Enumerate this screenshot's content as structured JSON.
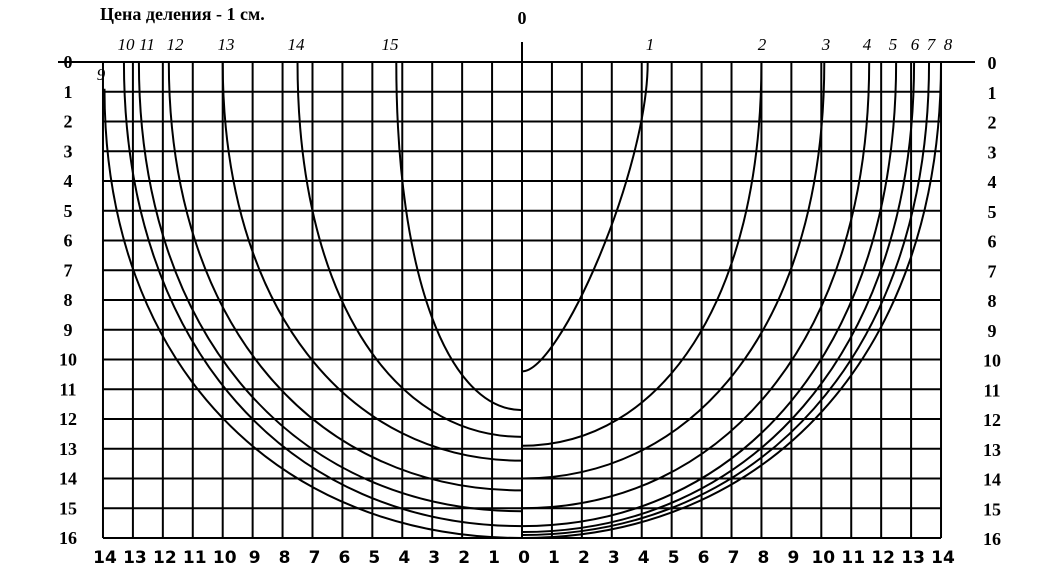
{
  "title": "Цена деления - 1 см.",
  "center_label": "0",
  "left_scale": [
    "0",
    "1",
    "2",
    "3",
    "4",
    "5",
    "6",
    "7",
    "8",
    "9",
    "10",
    "11",
    "12",
    "13",
    "14",
    "15",
    "16"
  ],
  "right_scale": [
    "0",
    "1",
    "2",
    "3",
    "4",
    "5",
    "6",
    "7",
    "8",
    "9",
    "10",
    "11",
    "12",
    "13",
    "14",
    "15",
    "16"
  ],
  "bottom_scale": [
    "14",
    "13",
    "12",
    "11",
    "10",
    "9",
    "8",
    "7",
    "6",
    "5",
    "4",
    "3",
    "2",
    "1",
    "0",
    "1",
    "2",
    "3",
    "4",
    "5",
    "6",
    "7",
    "8",
    "9",
    "10",
    "11",
    "12",
    "13",
    "14"
  ],
  "station_labels": [
    "9",
    "10",
    "11",
    "12",
    "13",
    "14",
    "15",
    "1",
    "2",
    "3",
    "4",
    "5",
    "6",
    "7",
    "8"
  ]
}
